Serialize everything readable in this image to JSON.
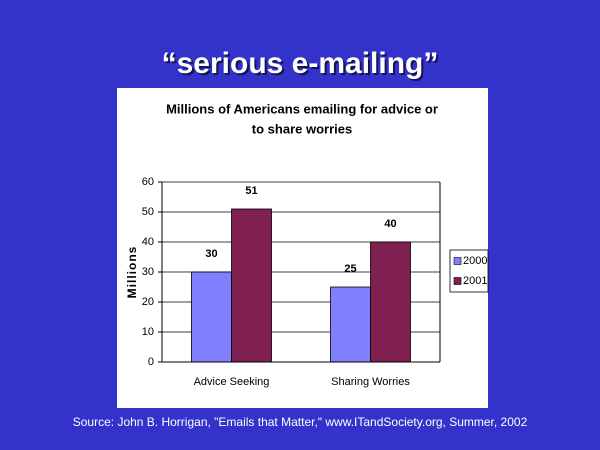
{
  "slide_title": "“serious e-mailing”",
  "source": "Source: John B. Horrigan, \"Emails that Matter,\" www.ITandSociety.org, Summer, 2002",
  "chart_data": {
    "type": "bar",
    "title": [
      "Millions of Americans emailing for advice or",
      "to share worries"
    ],
    "y_label": "Millions",
    "categories": [
      "Advice Seeking",
      "Sharing Worries"
    ],
    "series": [
      {
        "name": "2000",
        "color": "#8080ff",
        "values": [
          30,
          25
        ]
      },
      {
        "name": "2001",
        "color": "#802050",
        "values": [
          51,
          40
        ]
      }
    ],
    "ylim": [
      0,
      60
    ],
    "yticks": [
      0,
      10,
      20,
      30,
      40,
      50,
      60
    ],
    "grid": true,
    "legend": "right"
  }
}
